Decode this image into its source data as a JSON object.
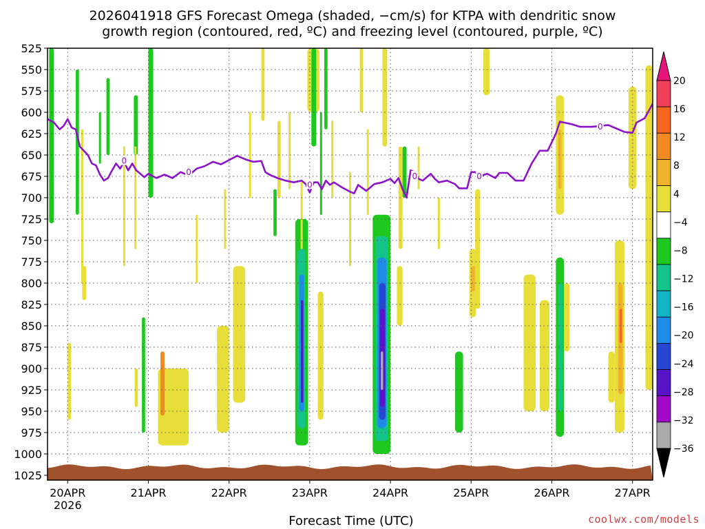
{
  "chart_data": {
    "type": "heatmap",
    "title_line1": "2026041918 GFS Forecast Omega (shaded, −cm/s) for KTPA with dendritic snow",
    "title_line2": "growth region (contoured, red, ºC) and freezing level (contoured, purple, ºC)",
    "xlabel": "Forecast Time (UTC)",
    "credit": "coolwx.com/models",
    "y_axis": {
      "unit": "hPa",
      "levels": [
        525,
        550,
        575,
        600,
        625,
        650,
        675,
        700,
        725,
        750,
        775,
        800,
        825,
        850,
        875,
        900,
        925,
        950,
        975,
        1000,
        1025
      ]
    },
    "x_axis": {
      "start_day": 19.75,
      "end_day": 27.25,
      "ticks": [
        {
          "day": 20,
          "label": "20APR",
          "sublabel": "2026"
        },
        {
          "day": 21,
          "label": "21APR",
          "sublabel": ""
        },
        {
          "day": 22,
          "label": "22APR",
          "sublabel": ""
        },
        {
          "day": 23,
          "label": "23APR",
          "sublabel": ""
        },
        {
          "day": 24,
          "label": "24APR",
          "sublabel": ""
        },
        {
          "day": 25,
          "label": "25APR",
          "sublabel": ""
        },
        {
          "day": 26,
          "label": "26APR",
          "sublabel": ""
        },
        {
          "day": 27,
          "label": "27APR",
          "sublabel": ""
        }
      ]
    },
    "grid": "dotted",
    "colorbar": {
      "position": "right",
      "labels": [
        20,
        16,
        12,
        8,
        4,
        -4,
        -8,
        -12,
        -16,
        -20,
        -24,
        -28,
        -32,
        -36
      ],
      "colors": [
        "#ef3f5a",
        "#f4661e",
        "#f08a23",
        "#f0b42a",
        "#e8de3a",
        "#ffffff",
        "#1ec81e",
        "#13c38a",
        "#14b4c8",
        "#1e8ce6",
        "#2846d2",
        "#5a14c8",
        "#a00ac8",
        "#aaaaaa"
      ],
      "top_arrow_color": "#e6147a",
      "bottom_arrow_color": "#000000"
    },
    "freezing_level": {
      "color": "#8c14c8",
      "contour_label": "0",
      "label_points": [
        [
          20.7,
          657
        ],
        [
          21.5,
          670
        ],
        [
          23.0,
          685
        ],
        [
          24.3,
          675
        ],
        [
          25.1,
          675
        ],
        [
          26.6,
          617
        ]
      ],
      "points": [
        [
          19.75,
          608
        ],
        [
          19.83,
          612
        ],
        [
          19.9,
          620
        ],
        [
          19.95,
          616
        ],
        [
          20.0,
          608
        ],
        [
          20.05,
          618
        ],
        [
          20.1,
          620
        ],
        [
          20.15,
          640
        ],
        [
          20.2,
          645
        ],
        [
          20.25,
          650
        ],
        [
          20.3,
          660
        ],
        [
          20.35,
          662
        ],
        [
          20.4,
          673
        ],
        [
          20.45,
          680
        ],
        [
          20.5,
          677
        ],
        [
          20.55,
          668
        ],
        [
          20.6,
          660
        ],
        [
          20.65,
          666
        ],
        [
          20.7,
          658
        ],
        [
          20.75,
          668
        ],
        [
          20.8,
          660
        ],
        [
          20.85,
          668
        ],
        [
          20.9,
          672
        ],
        [
          20.95,
          676
        ],
        [
          21.0,
          672
        ],
        [
          21.1,
          677
        ],
        [
          21.2,
          673
        ],
        [
          21.3,
          677
        ],
        [
          21.4,
          670
        ],
        [
          21.5,
          674
        ],
        [
          21.6,
          666
        ],
        [
          21.7,
          663
        ],
        [
          21.8,
          658
        ],
        [
          21.9,
          661
        ],
        [
          22.0,
          656
        ],
        [
          22.1,
          651
        ],
        [
          22.2,
          655
        ],
        [
          22.3,
          658
        ],
        [
          22.4,
          657
        ],
        [
          22.45,
          670
        ],
        [
          22.5,
          673
        ],
        [
          22.6,
          677
        ],
        [
          22.7,
          680
        ],
        [
          22.8,
          682
        ],
        [
          22.9,
          680
        ],
        [
          22.95,
          684
        ],
        [
          23.0,
          694
        ],
        [
          23.05,
          682
        ],
        [
          23.1,
          682
        ],
        [
          23.15,
          690
        ],
        [
          23.2,
          680
        ],
        [
          23.25,
          685
        ],
        [
          23.3,
          682
        ],
        [
          23.4,
          688
        ],
        [
          23.5,
          693
        ],
        [
          23.55,
          695
        ],
        [
          23.6,
          685
        ],
        [
          23.7,
          692
        ],
        [
          23.8,
          684
        ],
        [
          23.9,
          682
        ],
        [
          24.0,
          678
        ],
        [
          24.05,
          683
        ],
        [
          24.1,
          677
        ],
        [
          24.15,
          690
        ],
        [
          24.2,
          700
        ],
        [
          24.25,
          668
        ],
        [
          24.3,
          670
        ],
        [
          24.35,
          678
        ],
        [
          24.4,
          680
        ],
        [
          24.5,
          672
        ],
        [
          24.55,
          678
        ],
        [
          24.6,
          682
        ],
        [
          24.7,
          680
        ],
        [
          24.8,
          684
        ],
        [
          24.85,
          689
        ],
        [
          24.95,
          689
        ],
        [
          25.0,
          670
        ],
        [
          25.05,
          670
        ],
        [
          25.1,
          675
        ],
        [
          25.2,
          672
        ],
        [
          25.3,
          677
        ],
        [
          25.35,
          671
        ],
        [
          25.45,
          671
        ],
        [
          25.55,
          680
        ],
        [
          25.65,
          680
        ],
        [
          25.75,
          660
        ],
        [
          25.85,
          645
        ],
        [
          25.95,
          645
        ],
        [
          26.05,
          625
        ],
        [
          26.1,
          611
        ],
        [
          26.15,
          612
        ],
        [
          26.25,
          614
        ],
        [
          26.35,
          617
        ],
        [
          26.5,
          617
        ],
        [
          26.7,
          615
        ],
        [
          26.9,
          623
        ],
        [
          27.0,
          624
        ],
        [
          27.05,
          612
        ],
        [
          27.15,
          607
        ],
        [
          27.25,
          590
        ]
      ]
    },
    "omega_regions": [
      {
        "day": [
          19.77,
          19.83
        ],
        "p": [
          525,
          730
        ],
        "color": "#1ec81e"
      },
      {
        "day": [
          20.1,
          20.14
        ],
        "p": [
          550,
          720
        ],
        "color": "#1ec81e"
      },
      {
        "day": [
          20.48,
          20.52
        ],
        "p": [
          560,
          650
        ],
        "color": "#1ec81e"
      },
      {
        "day": [
          20.82,
          20.87
        ],
        "p": [
          580,
          650
        ],
        "color": "#1ec81e"
      },
      {
        "day": [
          21.0,
          21.06
        ],
        "p": [
          525,
          700
        ],
        "color": "#1ec81e"
      },
      {
        "day": [
          22.4,
          22.44
        ],
        "p": [
          525,
          610
        ],
        "color": "#e8de3a"
      },
      {
        "day": [
          22.55,
          22.59
        ],
        "p": [
          690,
          745
        ],
        "color": "#1ec81e"
      },
      {
        "day": [
          22.6,
          22.64
        ],
        "p": [
          610,
          700
        ],
        "color": "#e8de3a"
      },
      {
        "day": [
          22.97,
          23.12
        ],
        "p": [
          525,
          600
        ],
        "color": "#e8de3a"
      },
      {
        "day": [
          23.02,
          23.08
        ],
        "p": [
          525,
          640
        ],
        "color": "#1ec81e"
      },
      {
        "day": [
          23.18,
          23.22
        ],
        "p": [
          525,
          620
        ],
        "color": "#1ec81e"
      },
      {
        "day": [
          23.62,
          23.66
        ],
        "p": [
          525,
          600
        ],
        "color": "#e8de3a"
      },
      {
        "day": [
          23.9,
          23.96
        ],
        "p": [
          525,
          640
        ],
        "color": "#e8de3a"
      },
      {
        "day": [
          24.1,
          24.15
        ],
        "p": [
          640,
          760
        ],
        "color": "#e8de3a"
      },
      {
        "day": [
          24.15,
          24.2
        ],
        "p": [
          640,
          700
        ],
        "color": "#1ec81e"
      },
      {
        "day": [
          25.15,
          25.23
        ],
        "p": [
          525,
          580
        ],
        "color": "#e8de3a"
      },
      {
        "day": [
          26.05,
          26.15
        ],
        "p": [
          580,
          720
        ],
        "color": "#e8de3a"
      },
      {
        "day": [
          26.08,
          26.12
        ],
        "p": [
          620,
          690
        ],
        "color": "#f0b42a"
      },
      {
        "day": [
          26.95,
          27.05
        ],
        "p": [
          570,
          690
        ],
        "color": "#e8de3a"
      },
      {
        "day": [
          27.16,
          27.25
        ],
        "p": [
          545,
          925
        ],
        "color": "#e8de3a"
      },
      {
        "day": [
          22.82,
          22.98
        ],
        "p": [
          725,
          990
        ],
        "color": "#1ec81e"
      },
      {
        "day": [
          22.85,
          22.95
        ],
        "p": [
          760,
          970
        ],
        "color": "#13c38a"
      },
      {
        "day": [
          22.87,
          22.93
        ],
        "p": [
          790,
          950
        ],
        "color": "#1e8ce6"
      },
      {
        "day": [
          22.89,
          22.92
        ],
        "p": [
          820,
          940
        ],
        "color": "#5a14c8"
      },
      {
        "day": [
          23.78,
          24.0
        ],
        "p": [
          720,
          1000
        ],
        "color": "#1ec81e"
      },
      {
        "day": [
          23.81,
          23.97
        ],
        "p": [
          745,
          985
        ],
        "color": "#13c38a"
      },
      {
        "day": [
          23.84,
          23.95
        ],
        "p": [
          770,
          970
        ],
        "color": "#1e8ce6"
      },
      {
        "day": [
          23.86,
          23.94
        ],
        "p": [
          800,
          960
        ],
        "color": "#2846d2"
      },
      {
        "day": [
          23.87,
          23.93
        ],
        "p": [
          830,
          945
        ],
        "color": "#5a14c8"
      },
      {
        "day": [
          23.88,
          23.91
        ],
        "p": [
          880,
          925
        ],
        "color": "#aaaaaa"
      },
      {
        "day": [
          20.0,
          20.04
        ],
        "p": [
          870,
          960
        ],
        "color": "#e8de3a"
      },
      {
        "day": [
          20.18,
          20.23
        ],
        "p": [
          780,
          820
        ],
        "color": "#e8de3a"
      },
      {
        "day": [
          20.83,
          20.87
        ],
        "p": [
          900,
          945
        ],
        "color": "#e8de3a"
      },
      {
        "day": [
          20.92,
          20.96
        ],
        "p": [
          840,
          975
        ],
        "color": "#1ec81e"
      },
      {
        "day": [
          21.12,
          21.5
        ],
        "p": [
          900,
          990
        ],
        "color": "#e8de3a"
      },
      {
        "day": [
          21.15,
          21.2
        ],
        "p": [
          880,
          955
        ],
        "color": "#f08a23"
      },
      {
        "day": [
          21.85,
          22.0
        ],
        "p": [
          850,
          975
        ],
        "color": "#e8de3a"
      },
      {
        "day": [
          22.05,
          22.2
        ],
        "p": [
          780,
          940
        ],
        "color": "#e8de3a"
      },
      {
        "day": [
          23.1,
          23.17
        ],
        "p": [
          810,
          960
        ],
        "color": "#e8de3a"
      },
      {
        "day": [
          24.08,
          24.15
        ],
        "p": [
          780,
          850
        ],
        "color": "#e8de3a"
      },
      {
        "day": [
          24.8,
          24.9
        ],
        "p": [
          880,
          975
        ],
        "color": "#1ec81e"
      },
      {
        "day": [
          24.98,
          25.06
        ],
        "p": [
          760,
          840
        ],
        "color": "#e8de3a"
      },
      {
        "day": [
          25.0,
          25.05
        ],
        "p": [
          780,
          810
        ],
        "color": "#f0b42a"
      },
      {
        "day": [
          25.05,
          25.11
        ],
        "p": [
          690,
          830
        ],
        "color": "#e8de3a"
      },
      {
        "day": [
          25.65,
          25.8
        ],
        "p": [
          790,
          950
        ],
        "color": "#e8de3a"
      },
      {
        "day": [
          25.85,
          25.97
        ],
        "p": [
          820,
          950
        ],
        "color": "#e8de3a"
      },
      {
        "day": [
          26.05,
          26.15
        ],
        "p": [
          770,
          980
        ],
        "color": "#1ec81e"
      },
      {
        "day": [
          26.08,
          26.13
        ],
        "p": [
          800,
          950
        ],
        "color": "#13c38a"
      },
      {
        "day": [
          26.15,
          26.22
        ],
        "p": [
          800,
          880
        ],
        "color": "#e8de3a"
      },
      {
        "day": [
          26.78,
          26.9
        ],
        "p": [
          750,
          975
        ],
        "color": "#e8de3a"
      },
      {
        "day": [
          26.82,
          26.88
        ],
        "p": [
          800,
          930
        ],
        "color": "#f0b42a"
      },
      {
        "day": [
          26.84,
          26.87
        ],
        "p": [
          830,
          870
        ],
        "color": "#f4661e"
      },
      {
        "day": [
          26.7,
          26.78
        ],
        "p": [
          880,
          940
        ],
        "color": "#e8de3a"
      }
    ],
    "omega_streaks": [
      {
        "day": 20.18,
        "p": [
          620,
          800
        ],
        "color": "#e8de3a"
      },
      {
        "day": 20.4,
        "p": [
          600,
          660
        ],
        "color": "#1ec81e"
      },
      {
        "day": 20.7,
        "p": [
          640,
          780
        ],
        "color": "#e8de3a"
      },
      {
        "day": 20.84,
        "p": [
          640,
          760
        ],
        "color": "#e8de3a"
      },
      {
        "day": 21.6,
        "p": [
          720,
          800
        ],
        "color": "#e8de3a"
      },
      {
        "day": 21.95,
        "p": [
          690,
          760
        ],
        "color": "#e8de3a"
      },
      {
        "day": 22.26,
        "p": [
          600,
          700
        ],
        "color": "#e8de3a"
      },
      {
        "day": 22.75,
        "p": [
          600,
          690
        ],
        "color": "#e8de3a"
      },
      {
        "day": 22.9,
        "p": [
          680,
          760
        ],
        "color": "#e8de3a"
      },
      {
        "day": 23.14,
        "p": [
          600,
          720
        ],
        "color": "#1ec81e"
      },
      {
        "day": 23.28,
        "p": [
          610,
          700
        ],
        "color": "#e8de3a"
      },
      {
        "day": 23.5,
        "p": [
          670,
          780
        ],
        "color": "#e8de3a"
      },
      {
        "day": 23.72,
        "p": [
          620,
          720
        ],
        "color": "#e8de3a"
      },
      {
        "day": 24.35,
        "p": [
          640,
          690
        ],
        "color": "#e8de3a"
      },
      {
        "day": 24.6,
        "p": [
          700,
          760
        ],
        "color": "#e8de3a"
      }
    ],
    "surface": {
      "color": "#a0522d",
      "top_p": 1015
    }
  }
}
